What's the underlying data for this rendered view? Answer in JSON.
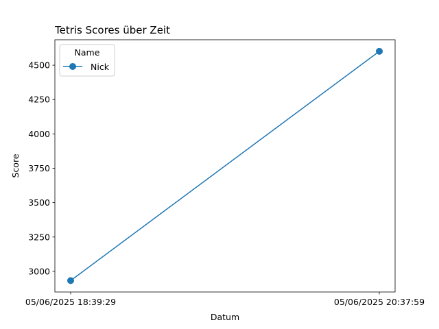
{
  "chart_data": {
    "type": "line",
    "title": "Tetris Scores über Zeit",
    "xlabel": "Datum",
    "ylabel": "Score",
    "x": [
      "05/06/2025 18:39:29",
      "05/06/2025 20:37:59"
    ],
    "series": [
      {
        "name": "Nick",
        "values": [
          2933,
          4601
        ],
        "color": "#1f77b4",
        "marker": "circle"
      }
    ],
    "ylim": [
      2850,
      4685
    ],
    "yticks": [
      3000,
      3250,
      3500,
      3750,
      4000,
      4250,
      4500
    ],
    "ytick_labels": [
      "3000",
      "3250",
      "3500",
      "3750",
      "4000",
      "4250",
      "4500"
    ],
    "grid": false,
    "legend": {
      "title": "Name",
      "placement": "top-left"
    }
  }
}
